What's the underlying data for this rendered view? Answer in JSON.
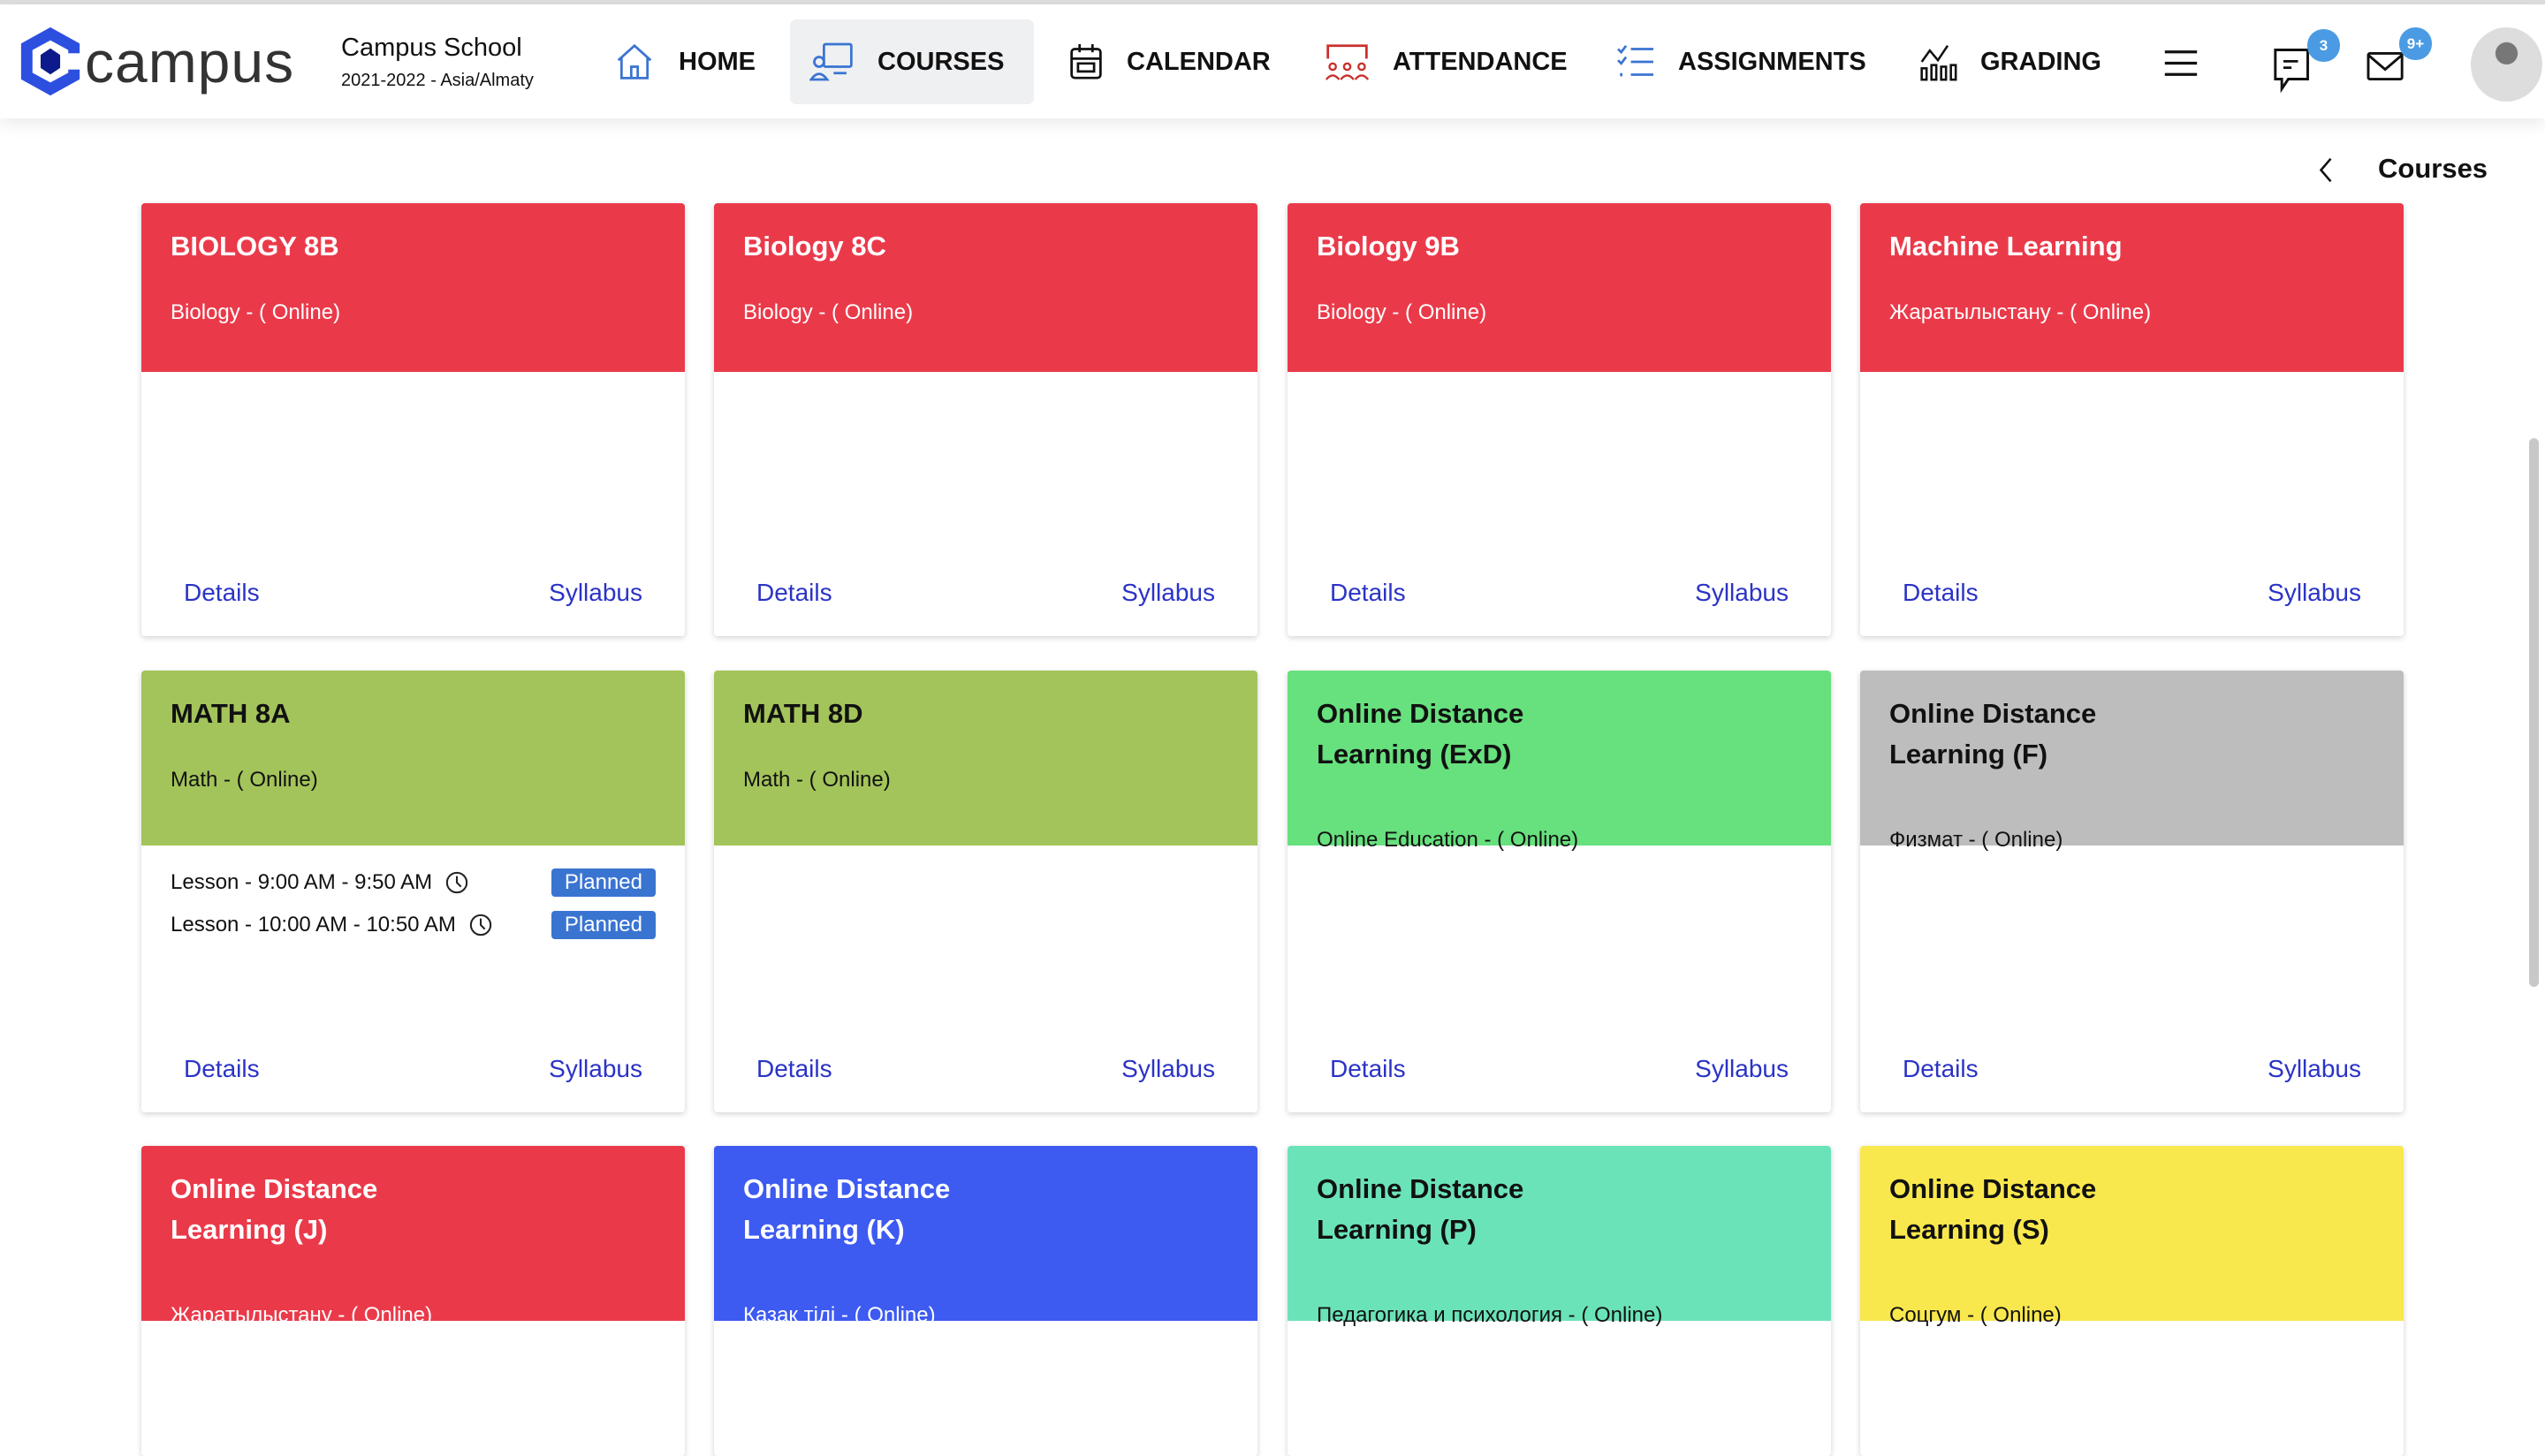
{
  "header": {
    "logo_text": "campus",
    "school_name": "Campus School",
    "school_year": "2021-2022 - Asia/Almaty",
    "nav": [
      {
        "label": "HOME",
        "icon": "home-icon",
        "active": false
      },
      {
        "label": "COURSES",
        "icon": "courses-icon",
        "active": true
      },
      {
        "label": "CALENDAR",
        "icon": "calendar-icon",
        "active": false
      },
      {
        "label": "ATTENDANCE",
        "icon": "attendance-icon",
        "active": false
      },
      {
        "label": "ASSIGNMENTS",
        "icon": "assignments-icon",
        "active": false
      },
      {
        "label": "GRADING",
        "icon": "grading-icon",
        "active": false
      }
    ],
    "messages_badge": "3",
    "mail_badge": "9+"
  },
  "breadcrumb": {
    "title": "Courses"
  },
  "colors": {
    "red": "#ea3a4a",
    "olive": "#a3c45a",
    "green": "#67e07e",
    "gray": "#bdbdbd",
    "blue": "#3d5af1",
    "teal": "#6be3b9",
    "yellow": "#f9e84d",
    "link": "#2b33c6",
    "planned": "#3a74d1"
  },
  "card_links": {
    "details": "Details",
    "syllabus": "Syllabus"
  },
  "courses": [
    {
      "title": "BIOLOGY 8B",
      "subtitle": "Biology - ( Online)",
      "color": "#ea3a4a",
      "light": true
    },
    {
      "title": "Biology 8C",
      "subtitle": "Biology - ( Online)",
      "color": "#ea3a4a",
      "light": true
    },
    {
      "title": "Biology 9B",
      "subtitle": "Biology - ( Online)",
      "color": "#ea3a4a",
      "light": true
    },
    {
      "title": "Machine Learning",
      "subtitle": "Жаратылыстану - ( Online)",
      "color": "#ea3a4a",
      "light": true
    },
    {
      "title": "MATH 8A",
      "subtitle": "Math - ( Online)",
      "color": "#a3c45a",
      "light": false,
      "lessons": [
        {
          "text": "Lesson - 9:00 AM - 9:50 AM",
          "status": "Planned"
        },
        {
          "text": "Lesson - 10:00 AM - 10:50 AM",
          "status": "Planned"
        }
      ]
    },
    {
      "title": "MATH 8D",
      "subtitle": "Math - ( Online)",
      "color": "#a3c45a",
      "light": false
    },
    {
      "title": "Online Distance Learning (ExD)",
      "subtitle": "Online Education - ( Online)",
      "color": "#67e07e",
      "light": false
    },
    {
      "title": "Online Distance Learning (F)",
      "subtitle": "Физмат - ( Online)",
      "color": "#bdbdbd",
      "light": false
    },
    {
      "title": "Online Distance Learning (J)",
      "subtitle": "Жаратылыстану - ( Online)",
      "color": "#ea3a4a",
      "light": true
    },
    {
      "title": "Online Distance Learning (K)",
      "subtitle": "Қазақ тілі - ( Online)",
      "color": "#3d5af1",
      "light": true
    },
    {
      "title": "Online Distance Learning (P)",
      "subtitle": "Педагогика и психология - ( Online)",
      "color": "#6be3b9",
      "light": false
    },
    {
      "title": "Online Distance Learning (S)",
      "subtitle": "Соцгум - ( Online)",
      "color": "#f9e84d",
      "light": false
    }
  ]
}
